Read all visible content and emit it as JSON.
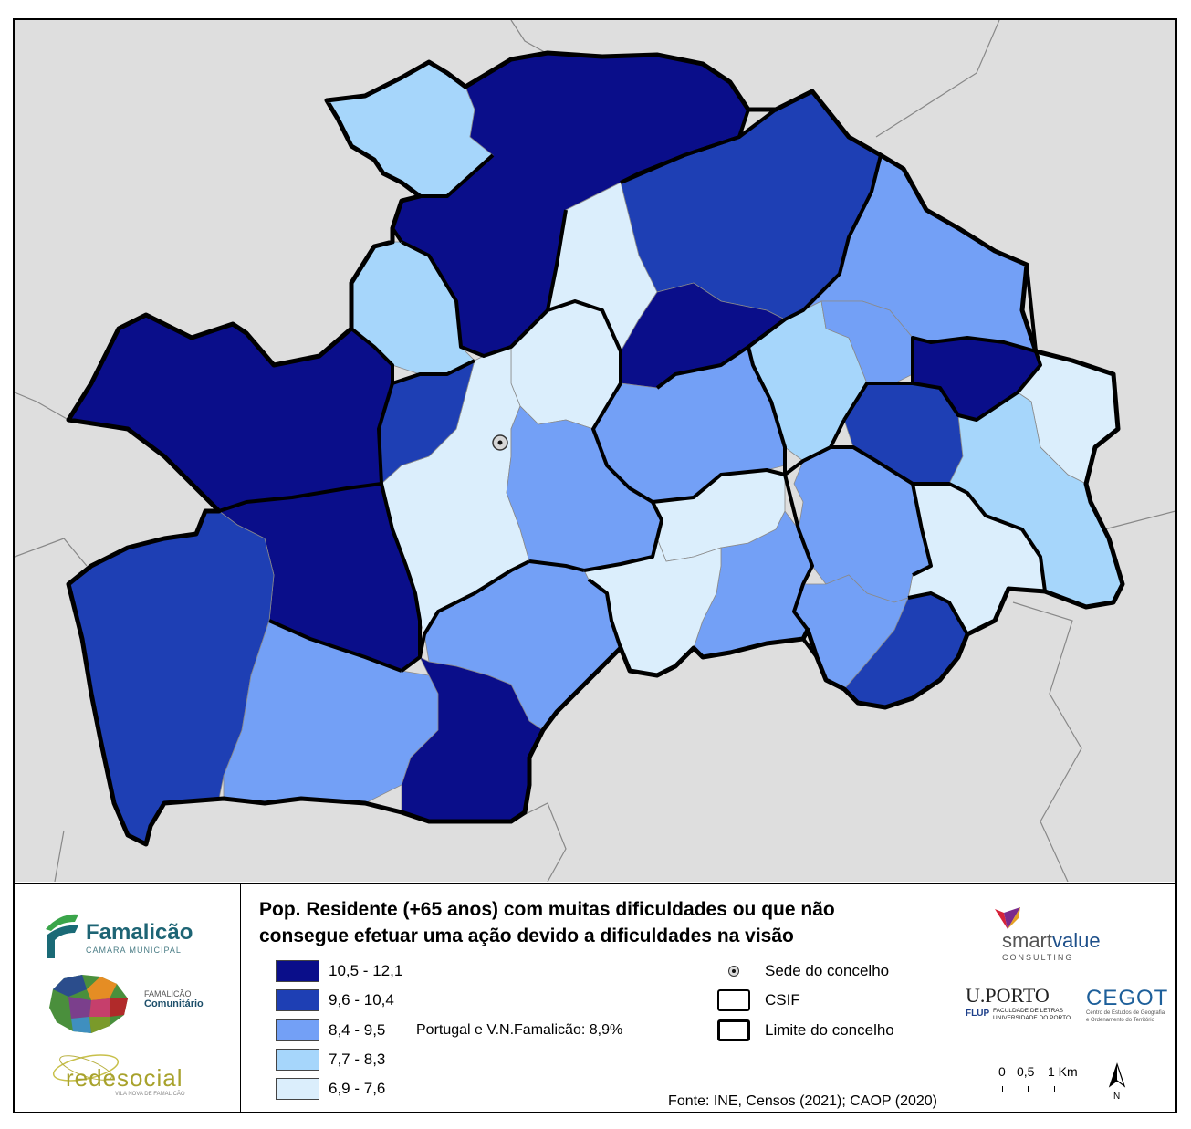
{
  "map": {
    "colors": {
      "background": "#dedede",
      "class_1": "#0a0e8a",
      "class_2": "#1e3fb4",
      "class_3": "#73a0f6",
      "class_4": "#a6d6fb",
      "class_5": "#dbeefc",
      "outline": "#000000"
    }
  },
  "legend": {
    "title_line1": "Pop. Residente (+65 anos) com muitas dificuldades ou que não",
    "title_line2": "consegue efetuar uma ação devido a dificuldades na visão",
    "classes": [
      {
        "label": "10,5 - 12,1",
        "color": "#0a0e8a"
      },
      {
        "label": "9,6 - 10,4",
        "color": "#1e3fb4"
      },
      {
        "label": "8,4 - 9,5",
        "color": "#73a0f6"
      },
      {
        "label": "7,7 - 8,3",
        "color": "#a6d6fb"
      },
      {
        "label": "6,9 - 7,6",
        "color": "#dbeefc"
      }
    ],
    "reference": "Portugal e V.N.Famalicão: 8,9%",
    "symbols": {
      "seat": "Sede do concelho",
      "csif": "CSIF",
      "boundary": "Limite do concelho"
    },
    "source": "Fonte: INE, Censos (2021); CAOP (2020)"
  },
  "logos": {
    "famalicao": "Famalicão",
    "camara": "CÂMARA MUNICIPAL",
    "comunitario_1": "FAMALICÃO",
    "comunitario_2": "Comunitário",
    "redesocial": "redesocial",
    "redesocial_sub": "VILA NOVA DE FAMALICÃO",
    "smartvalue_1": "smart",
    "smartvalue_2": "value",
    "consulting": "CONSULTING",
    "uporto": "U.PORTO",
    "flup": "FLUP",
    "flup_1": "FACULDADE DE LETRAS",
    "flup_2": "UNIVERSIDADE DO PORTO",
    "cegot": "CEGOT",
    "cegot_1": "Centro de Estudos de Geografia",
    "cegot_2": "e Ordenamento do Território"
  },
  "scale": {
    "labels": [
      "0",
      "0,5",
      "1 Km"
    ]
  },
  "north_label": "N"
}
